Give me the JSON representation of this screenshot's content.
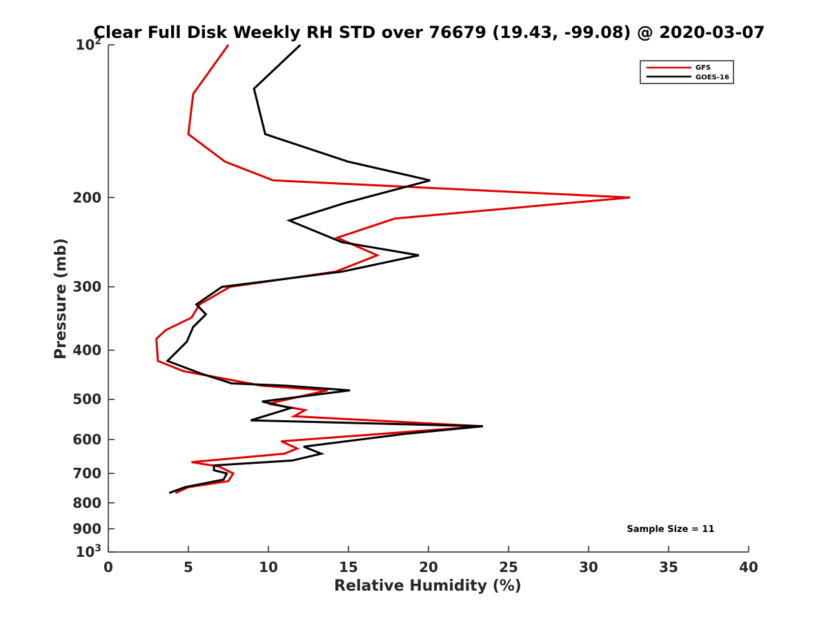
{
  "chart_data": {
    "type": "line",
    "title": "Clear Full Disk Weekly RH STD over 76679 (19.43, -99.08) @ 2020-03-07",
    "xlabel": "Relative Humidity (%)",
    "ylabel": "Pressure (mb)",
    "xlim": [
      0,
      40
    ],
    "ylim": [
      100,
      1000
    ],
    "y_scale": "log",
    "y_reversed": true,
    "grid": false,
    "legend_position": "top-right",
    "note": "Sample Size = 11",
    "x_ticks": [
      0,
      5,
      10,
      15,
      20,
      25,
      30,
      35,
      40
    ],
    "y_ticks": [
      {
        "value": 100,
        "base": "10",
        "exp": "2"
      },
      {
        "value": 200,
        "label": "200"
      },
      {
        "value": 300,
        "label": "300"
      },
      {
        "value": 400,
        "label": "400"
      },
      {
        "value": 500,
        "label": "500"
      },
      {
        "value": 600,
        "label": "600"
      },
      {
        "value": 700,
        "label": "700"
      },
      {
        "value": 800,
        "label": "800"
      },
      {
        "value": 900,
        "label": "900"
      },
      {
        "value": 1000,
        "base": "10",
        "exp": "3"
      }
    ],
    "series": [
      {
        "name": "GFS",
        "color": "#e00000",
        "points": [
          [
            7.5,
            100
          ],
          [
            5.3,
            125
          ],
          [
            5.0,
            150
          ],
          [
            7.3,
            170
          ],
          [
            10.3,
            185
          ],
          [
            32.6,
            200
          ],
          [
            17.9,
            220
          ],
          [
            14.3,
            240
          ],
          [
            16.8,
            260
          ],
          [
            14.2,
            280
          ],
          [
            7.6,
            300
          ],
          [
            5.7,
            325
          ],
          [
            5.2,
            345
          ],
          [
            3.6,
            365
          ],
          [
            3.0,
            380
          ],
          [
            3.1,
            420
          ],
          [
            4.7,
            440
          ],
          [
            9.6,
            470
          ],
          [
            13.7,
            480
          ],
          [
            10.0,
            510
          ],
          [
            12.3,
            525
          ],
          [
            11.6,
            540
          ],
          [
            23.4,
            565
          ],
          [
            10.8,
            605
          ],
          [
            11.8,
            625
          ],
          [
            11.0,
            640
          ],
          [
            5.2,
            665
          ],
          [
            6.9,
            678
          ],
          [
            7.8,
            700
          ],
          [
            7.5,
            725
          ],
          [
            5.0,
            745
          ],
          [
            4.2,
            765
          ]
        ]
      },
      {
        "name": "GOES-16",
        "color": "#000000",
        "points": [
          [
            12.0,
            100
          ],
          [
            9.1,
            122
          ],
          [
            9.8,
            150
          ],
          [
            15.0,
            170
          ],
          [
            20.1,
            185
          ],
          [
            14.8,
            205
          ],
          [
            11.3,
            222
          ],
          [
            14.6,
            245
          ],
          [
            19.4,
            260
          ],
          [
            14.6,
            280
          ],
          [
            7.1,
            300
          ],
          [
            5.5,
            325
          ],
          [
            6.1,
            340
          ],
          [
            5.3,
            360
          ],
          [
            4.9,
            385
          ],
          [
            3.7,
            420
          ],
          [
            5.8,
            445
          ],
          [
            7.7,
            465
          ],
          [
            11.1,
            470
          ],
          [
            15.1,
            480
          ],
          [
            9.6,
            505
          ],
          [
            11.4,
            520
          ],
          [
            8.9,
            550
          ],
          [
            23.4,
            565
          ],
          [
            18.5,
            585
          ],
          [
            12.2,
            620
          ],
          [
            13.3,
            640
          ],
          [
            11.5,
            660
          ],
          [
            6.6,
            675
          ],
          [
            6.6,
            690
          ],
          [
            7.4,
            700
          ],
          [
            7.2,
            720
          ],
          [
            4.8,
            745
          ],
          [
            3.8,
            765
          ]
        ]
      }
    ]
  }
}
